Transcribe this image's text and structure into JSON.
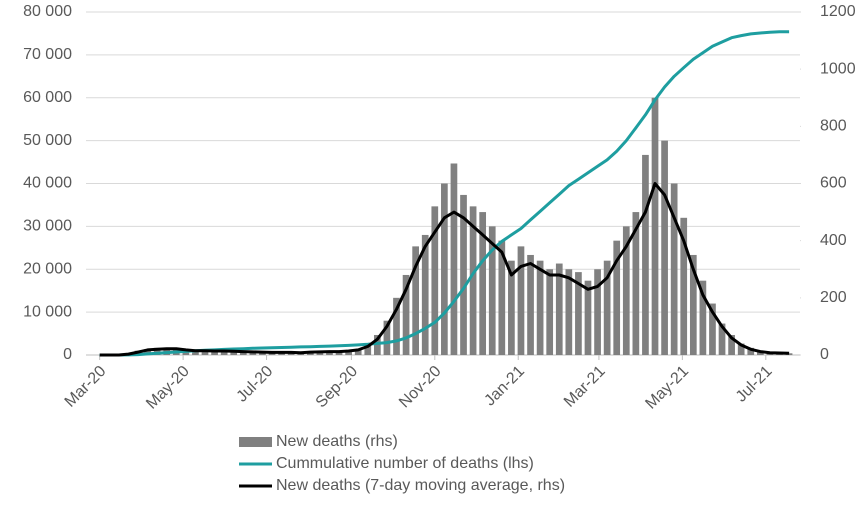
{
  "chart_data": {
    "type": "combo",
    "x": [
      0,
      7,
      14,
      21,
      28,
      35,
      42,
      49,
      56,
      63,
      70,
      77,
      84,
      91,
      98,
      105,
      112,
      119,
      126,
      133,
      140,
      147,
      154,
      161,
      168,
      175,
      182,
      189,
      196,
      203,
      210,
      217,
      224,
      231,
      238,
      245,
      252,
      259,
      266,
      273,
      280,
      287,
      294,
      301,
      308,
      315,
      322,
      329,
      336,
      343,
      350,
      357,
      364,
      371,
      378,
      385,
      392,
      399,
      406,
      413,
      420,
      427,
      434,
      441,
      448,
      455,
      462,
      469,
      476,
      483,
      490,
      497,
      504
    ],
    "xlim": [
      -10,
      512
    ],
    "xticks": [
      {
        "value": 0,
        "label": "Mar-20"
      },
      {
        "value": 61,
        "label": "May-20"
      },
      {
        "value": 122,
        "label": "Jul-20"
      },
      {
        "value": 184,
        "label": "Sep-20"
      },
      {
        "value": 245,
        "label": "Nov-20"
      },
      {
        "value": 306,
        "label": "Jan-21"
      },
      {
        "value": 365,
        "label": "Mar-21"
      },
      {
        "value": 426,
        "label": "May-21"
      },
      {
        "value": 487,
        "label": "Jul-21"
      }
    ],
    "ylim": [
      0,
      80000
    ],
    "yticks": [
      0,
      {
        "value": 10000,
        "label": "10 000"
      },
      {
        "value": 20000,
        "label": "20 000"
      },
      {
        "value": 30000,
        "label": "30 000"
      },
      {
        "value": 40000,
        "label": "40 000"
      },
      {
        "value": 50000,
        "label": "50 000"
      },
      {
        "value": 60000,
        "label": "60 000"
      },
      {
        "value": 70000,
        "label": "70 000"
      },
      {
        "value": 80000,
        "label": "80 000"
      }
    ],
    "y2lim": [
      0,
      1200
    ],
    "y2ticks": [
      0,
      200,
      400,
      600,
      800,
      1000,
      1200
    ],
    "grid": true,
    "series": [
      {
        "name": "New deaths (rhs)",
        "type": "bar",
        "axis": "y2",
        "color": "#808080",
        "values": [
          0,
          0,
          1,
          5,
          15,
          20,
          25,
          20,
          25,
          20,
          18,
          15,
          18,
          15,
          12,
          10,
          12,
          8,
          10,
          8,
          10,
          8,
          10,
          12,
          15,
          12,
          14,
          20,
          40,
          70,
          120,
          200,
          280,
          380,
          420,
          520,
          600,
          670,
          560,
          520,
          500,
          450,
          400,
          330,
          380,
          350,
          330,
          300,
          320,
          300,
          290,
          260,
          300,
          330,
          400,
          450,
          500,
          700,
          900,
          750,
          600,
          480,
          350,
          260,
          180,
          110,
          70,
          40,
          25,
          15,
          10,
          8,
          6
        ]
      },
      {
        "name": "Cummulative number of deaths (lhs)",
        "type": "line",
        "color": "#1e9ea0",
        "values": [
          0,
          0,
          5,
          30,
          100,
          250,
          400,
          550,
          700,
          850,
          1000,
          1100,
          1200,
          1300,
          1400,
          1480,
          1560,
          1630,
          1700,
          1760,
          1820,
          1880,
          1940,
          2000,
          2080,
          2160,
          2250,
          2350,
          2500,
          2700,
          2900,
          3300,
          4000,
          5000,
          6200,
          7600,
          9800,
          12500,
          15500,
          19000,
          22000,
          24500,
          26500,
          28000,
          29500,
          31500,
          33500,
          35500,
          37500,
          39500,
          41000,
          42500,
          44000,
          45500,
          47500,
          50000,
          53000,
          56000,
          59500,
          62500,
          65000,
          67000,
          69000,
          70500,
          72000,
          73000,
          74000,
          74500,
          74900,
          75100,
          75300,
          75400,
          75400
        ]
      },
      {
        "name": "New deaths (7-day moving average, rhs)",
        "type": "line",
        "axis": "y2",
        "color": "#000000",
        "values": [
          0,
          0,
          0,
          3,
          10,
          18,
          20,
          22,
          22,
          18,
          15,
          15,
          14,
          14,
          13,
          12,
          11,
          10,
          9,
          9,
          9,
          8,
          10,
          11,
          12,
          12,
          14,
          18,
          30,
          55,
          100,
          160,
          230,
          310,
          380,
          430,
          480,
          500,
          480,
          450,
          420,
          390,
          360,
          280,
          310,
          320,
          300,
          280,
          280,
          270,
          250,
          230,
          240,
          270,
          330,
          380,
          440,
          500,
          600,
          560,
          480,
          400,
          300,
          210,
          150,
          100,
          60,
          35,
          20,
          12,
          8,
          7,
          6
        ]
      }
    ]
  }
}
